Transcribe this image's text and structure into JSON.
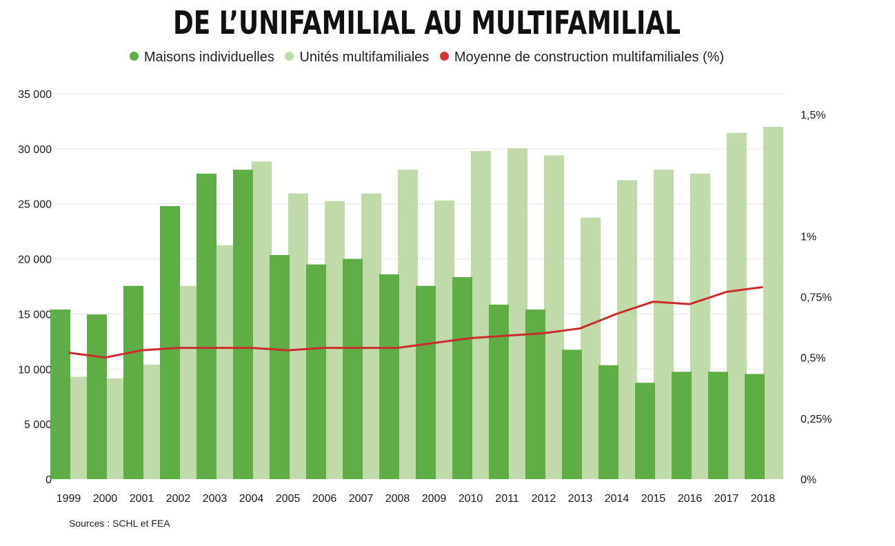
{
  "chart_data": {
    "type": "bar",
    "title": "DE L’UNIFAMILIAL AU MULTIFAMILIAL",
    "categories": [
      "1999",
      "2000",
      "2001",
      "2002",
      "2003",
      "2004",
      "2005",
      "2006",
      "2007",
      "2008",
      "2009",
      "2010",
      "2011",
      "2012",
      "2013",
      "2014",
      "2015",
      "2016",
      "2017",
      "2018"
    ],
    "series": [
      {
        "name": "Maisons individuelles",
        "kind": "bar",
        "axis": "left",
        "color": "#5fad45",
        "values": [
          15400,
          14950,
          17550,
          24800,
          27750,
          28100,
          20350,
          19500,
          20000,
          18600,
          17550,
          18350,
          15850,
          15400,
          11750,
          10350,
          8750,
          9750,
          9750,
          9550
        ]
      },
      {
        "name": "Unités multifamiliales",
        "kind": "bar",
        "axis": "left",
        "color": "#c0daa9",
        "values": [
          9300,
          9150,
          10400,
          17550,
          21250,
          28850,
          25950,
          25250,
          25950,
          28100,
          25300,
          29800,
          30050,
          29400,
          23750,
          27150,
          28100,
          27750,
          31450,
          32000
        ]
      },
      {
        "name": "Moyenne de construction multifamiliales (%)",
        "kind": "line",
        "axis": "right",
        "color": "#cc2b2b",
        "values": [
          0.52,
          0.5,
          0.53,
          0.54,
          0.54,
          0.54,
          0.53,
          0.54,
          0.54,
          0.54,
          0.56,
          0.58,
          0.59,
          0.6,
          0.62,
          0.68,
          0.73,
          0.72,
          0.77,
          0.79
        ]
      }
    ],
    "y_left": {
      "ylim": [
        0,
        35000
      ],
      "ticks": [
        0,
        5000,
        10000,
        15000,
        20000,
        25000,
        30000,
        35000
      ],
      "tick_labels": [
        "0",
        "5 000",
        "10 000",
        "15 000",
        "20 000",
        "25 000",
        "30 000",
        "35 000"
      ]
    },
    "y_right": {
      "ylim": [
        0,
        1.5
      ],
      "ticks": [
        0,
        0.25,
        0.5,
        0.75,
        1,
        1.5
      ],
      "tick_labels": [
        "0%",
        "0,25%",
        "0,5%",
        "0,75%",
        "1%",
        "1,5%"
      ]
    },
    "grid": true,
    "legend_position": "top-center"
  },
  "source": "Sources : SCHL et FEA"
}
